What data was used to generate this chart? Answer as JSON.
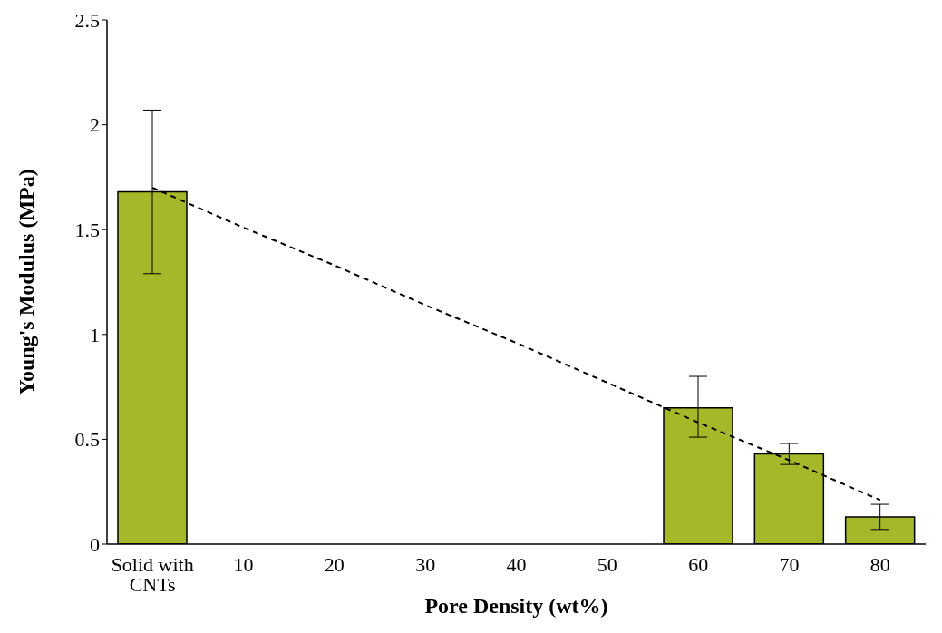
{
  "chart_data": {
    "type": "bar",
    "xlabel": "Pore Density (wt%)",
    "ylabel": "Young's Modulus (MPa)",
    "categories": [
      "Solid with CNTs",
      "10",
      "20",
      "30",
      "40",
      "50",
      "60",
      "70",
      "80"
    ],
    "series": [
      {
        "color": "#a5b82a",
        "values": [
          1.68,
          null,
          null,
          null,
          null,
          null,
          0.65,
          0.43,
          0.13
        ],
        "errors": [
          [
            1.29,
            2.07
          ],
          null,
          null,
          null,
          null,
          null,
          [
            0.51,
            0.8
          ],
          [
            0.38,
            0.48
          ],
          [
            0.07,
            0.19
          ]
        ]
      },
      {
        "type": "line",
        "color": "#000000",
        "line_style": "dashed",
        "marker": "none",
        "values": [
          1.7,
          1.51,
          1.33,
          1.14,
          0.96,
          0.77,
          0.58,
          0.4,
          0.21
        ]
      }
    ],
    "ylim": [
      0,
      2.5
    ],
    "yticks": [
      0,
      0.5,
      1,
      1.5,
      2,
      2.5
    ],
    "grid": false,
    "legend": false
  }
}
